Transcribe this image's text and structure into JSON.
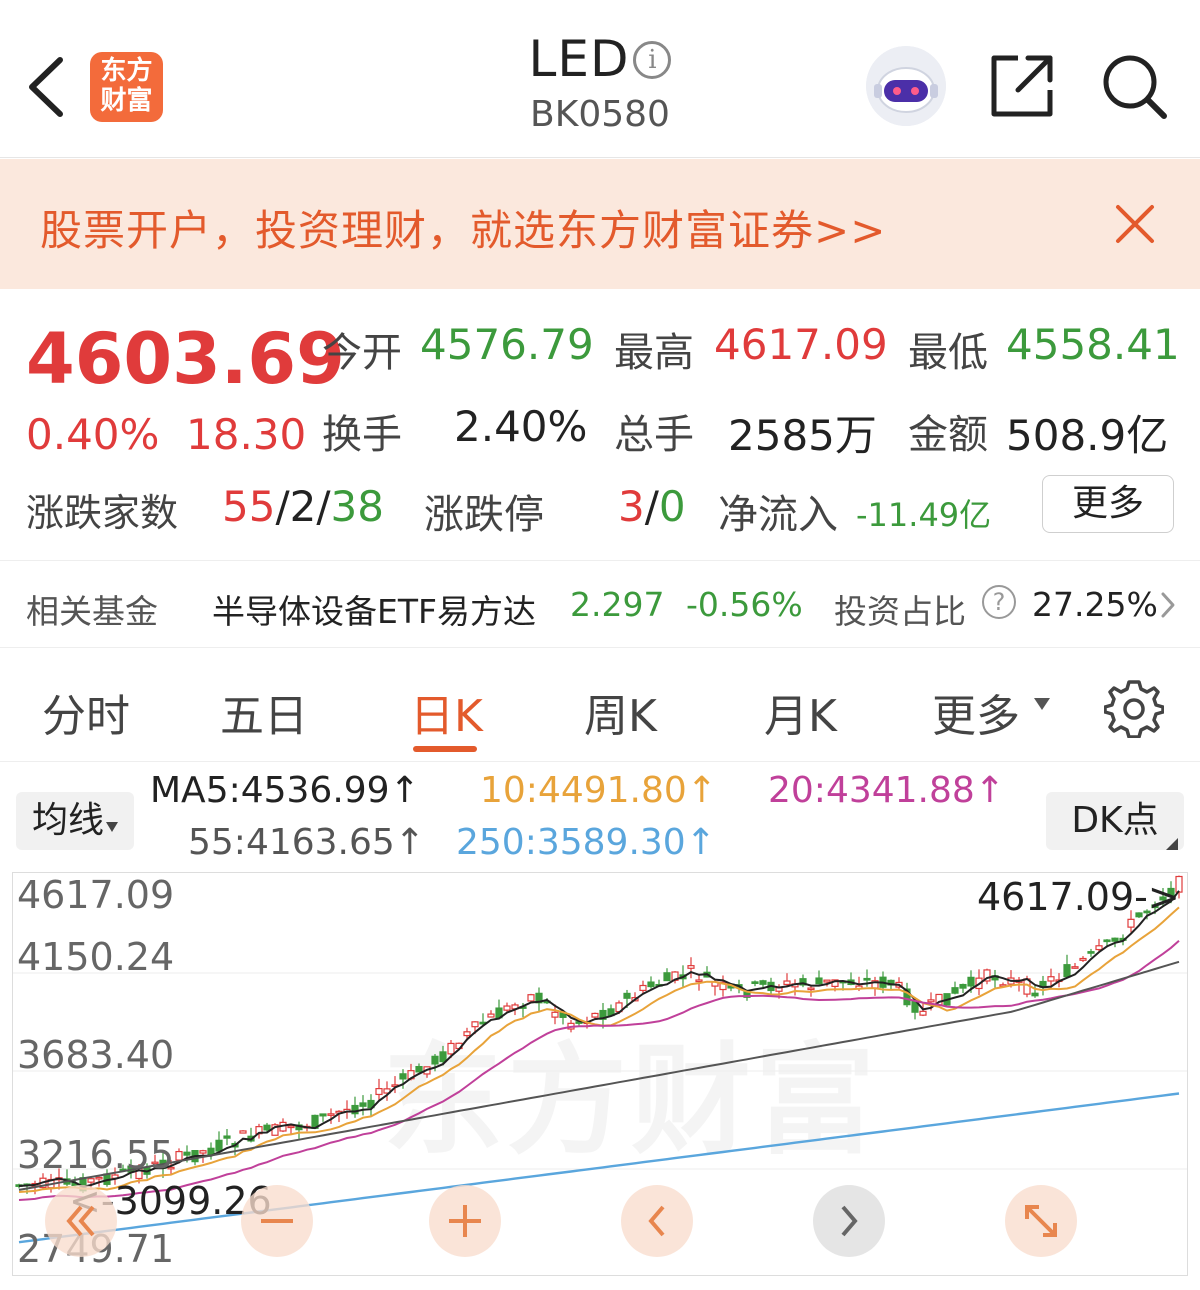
{
  "header": {
    "logo_line1": "东方",
    "logo_line2": "财富",
    "title": "LED",
    "info_glyph": "i",
    "code": "BK0580"
  },
  "banner": {
    "text": "股票开户，投资理财，就选东方财富证券>>"
  },
  "quote": {
    "price": "4603.69",
    "change_pct": "0.40%",
    "change": "18.30",
    "open_label": "今开",
    "open_value": "4576.79",
    "high_label": "最高",
    "high_value": "4617.09",
    "low_label": "最低",
    "low_value": "4558.41",
    "turnover_label": "换手",
    "turnover_value": "2.40%",
    "volume_label": "总手",
    "volume_value": "2585万",
    "amount_label": "金额",
    "amount_value": "508.9亿",
    "breadth_label": "涨跌家数",
    "breadth_up": "55",
    "breadth_sep1": "/",
    "breadth_flat": "2",
    "breadth_sep2": "/",
    "breadth_down": "38",
    "limit_label": "涨跌停",
    "limit_up": "3",
    "limit_sep": "/",
    "limit_down": "0",
    "netflow_label": "净流入",
    "netflow_value": "-11.49亿",
    "more_button": "更多"
  },
  "fund": {
    "label": "相关基金",
    "name": "半导体设备ETF易方达",
    "price": "2.297",
    "change": "-0.56%",
    "ratio_label": "投资占比",
    "ratio_help": "?",
    "ratio_value": "27.25%"
  },
  "tabs": [
    {
      "label": "分时"
    },
    {
      "label": "五日"
    },
    {
      "label": "日K"
    },
    {
      "label": "周K"
    },
    {
      "label": "月K"
    },
    {
      "label": "更多"
    }
  ],
  "ma": {
    "selector": "均线",
    "ma5": "MA5:4536.99↑",
    "ma10": "10:4491.80↑",
    "ma20": "20:4341.88↑",
    "ma55": "55:4163.65↑",
    "ma250": "250:3589.30↑",
    "dk_button": "DK点",
    "colors": {
      "ma5": "#222222",
      "ma10": "#e8a33a",
      "ma20": "#c0409a",
      "ma55": "#555555",
      "ma250": "#5aa6dd",
      "up": "#e03b3b",
      "down": "#3c9a3c"
    }
  },
  "chart": {
    "y_ticks": [
      "4617.09",
      "4150.24",
      "3683.40",
      "3216.55",
      "2749.71"
    ],
    "max_label": "4617.09",
    "min_label": "3099.26",
    "watermark": "东方财富"
  },
  "icons": [
    "chevron-left-icon",
    "info-icon",
    "robot-avatar-icon",
    "share-icon",
    "search-icon",
    "close-icon",
    "gear-icon",
    "double-left-icon",
    "minus-icon",
    "plus-icon",
    "left-icon",
    "right-icon",
    "expand-icon"
  ]
}
